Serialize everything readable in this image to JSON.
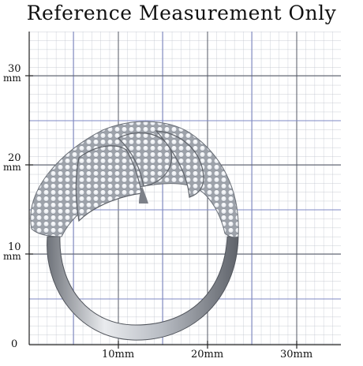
{
  "title": "Reference Measurement Only",
  "scale": {
    "origin_label": "0",
    "y_ticks": [
      {
        "value": "10",
        "unit": "mm"
      },
      {
        "value": "20",
        "unit": "mm"
      },
      {
        "value": "30",
        "unit": "mm"
      }
    ],
    "x_ticks": [
      "10mm",
      "20mm",
      "30mm"
    ]
  },
  "subject": {
    "kind": "ring-photo",
    "colors": {
      "metal": "#c9ccd1",
      "stones": "#f4f6f8",
      "grid_minor": "#b9bec8",
      "grid_major": "#555a66",
      "grid_blue": "#7f88c6"
    }
  }
}
